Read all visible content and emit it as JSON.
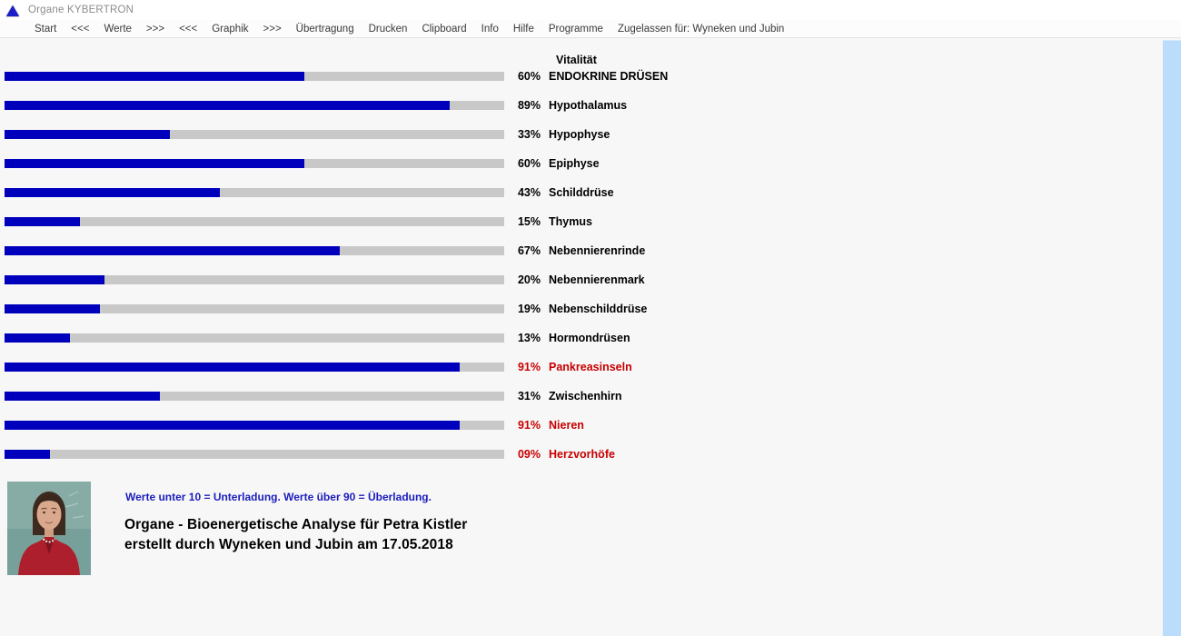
{
  "titlebar": {
    "title": "Organe KYBERTRON"
  },
  "menubar": {
    "items": [
      "Start",
      "<<<",
      "Werte",
      ">>>",
      "<<<",
      "Graphik",
      ">>>",
      "Übertragung",
      "Drucken",
      "Clipboard",
      "Info",
      "Hilfe",
      "Programme",
      "Zugelassen für: Wyneken und Jubin"
    ]
  },
  "chart_data": {
    "type": "bar",
    "orientation": "horizontal",
    "title": "Vitalität",
    "xlim": [
      0,
      100
    ],
    "unit": "%",
    "bar_color": "#0000bc",
    "track_color": "#c8c8c8",
    "normal_text_color": "#000000",
    "alert_text_color": "#c80000",
    "rows": [
      {
        "pct": "60%",
        "value": 60,
        "label": "ENDOKRINE DRÜSEN",
        "state": "normal"
      },
      {
        "pct": "89%",
        "value": 89,
        "label": "Hypothalamus",
        "state": "normal"
      },
      {
        "pct": "33%",
        "value": 33,
        "label": "Hypophyse",
        "state": "normal"
      },
      {
        "pct": "60%",
        "value": 60,
        "label": "Epiphyse",
        "state": "normal"
      },
      {
        "pct": "43%",
        "value": 43,
        "label": "Schilddrüse",
        "state": "normal"
      },
      {
        "pct": "15%",
        "value": 15,
        "label": "Thymus",
        "state": "normal"
      },
      {
        "pct": "67%",
        "value": 67,
        "label": "Nebennierenrinde",
        "state": "normal"
      },
      {
        "pct": "20%",
        "value": 20,
        "label": "Nebennierenmark",
        "state": "normal"
      },
      {
        "pct": "19%",
        "value": 19,
        "label": "Nebenschilddrüse",
        "state": "normal"
      },
      {
        "pct": "13%",
        "value": 13,
        "label": "Hormondrüsen",
        "state": "normal"
      },
      {
        "pct": "91%",
        "value": 91,
        "label": "Pankreasinseln",
        "state": "alert"
      },
      {
        "pct": "31%",
        "value": 31,
        "label": "Zwischenhirn",
        "state": "normal"
      },
      {
        "pct": "91%",
        "value": 91,
        "label": "Nieren",
        "state": "alert"
      },
      {
        "pct": "09%",
        "value": 9,
        "label": "Herzvorhöfe",
        "state": "alert"
      }
    ]
  },
  "footer": {
    "note": "Werte unter 10 = Unterladung. Werte über 90 = Überladung.",
    "note_color": "#1c1cbe",
    "title_line1": "Organe - Bioenergetische Analyse für Petra Kistler",
    "title_line2": "erstellt durch Wyneken und Jubin am 17.05.2018",
    "photo_alt": "portrait-woman-red-jacket"
  }
}
